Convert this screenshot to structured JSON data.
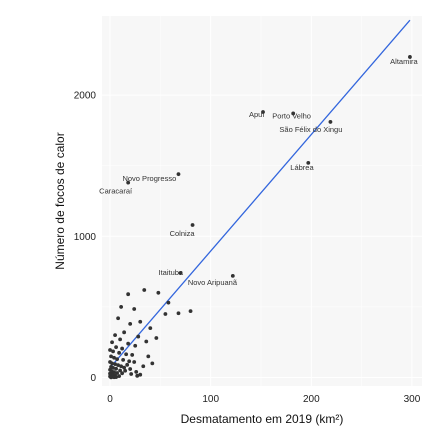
{
  "chart_data": {
    "type": "scatter",
    "title": "",
    "xlabel": "Desmatamento em 2019 (km²)",
    "ylabel": "Número de focos de calor",
    "xlim": [
      -8,
      310
    ],
    "ylim": [
      -60,
      2560
    ],
    "x_ticks": [
      0,
      100,
      200,
      300
    ],
    "y_ticks": [
      0,
      1000,
      2000
    ],
    "x_tick_labels": [
      "0",
      "100",
      "200",
      "300"
    ],
    "y_tick_labels": [
      "0",
      "1000",
      "2000"
    ],
    "grid": true,
    "background": "#f7f7f7",
    "grid_color": "#ffffff",
    "point_color": "#333333",
    "trend_color": "#3366dd",
    "trend_line": {
      "type": "linear",
      "x": [
        0,
        298
      ],
      "y": [
        70,
        2530
      ]
    },
    "labeled_points": [
      {
        "x": 298,
        "y": 2270,
        "label": "Altamira"
      },
      {
        "x": 152,
        "y": 1880,
        "label": "Apuí"
      },
      {
        "x": 182,
        "y": 1870,
        "label": "Porto Velho"
      },
      {
        "x": 219,
        "y": 1810,
        "label": "São Félix do Xingu"
      },
      {
        "x": 197,
        "y": 1520,
        "label": "Lábrea"
      },
      {
        "x": 68,
        "y": 1440,
        "label": "Novo Progresso"
      },
      {
        "x": 18,
        "y": 1380,
        "label": "Caracaraí"
      },
      {
        "x": 82,
        "y": 1080,
        "label": "Colniza"
      },
      {
        "x": 70,
        "y": 740,
        "label": "Itaituba"
      },
      {
        "x": 122,
        "y": 720,
        "label": "Novo Aripuanã"
      }
    ],
    "points": [
      {
        "x": 34,
        "y": 620
      },
      {
        "x": 48,
        "y": 600
      },
      {
        "x": 18,
        "y": 590
      },
      {
        "x": 58,
        "y": 530
      },
      {
        "x": 11,
        "y": 500
      },
      {
        "x": 24,
        "y": 485
      },
      {
        "x": 80,
        "y": 470
      },
      {
        "x": 68,
        "y": 455
      },
      {
        "x": 55,
        "y": 450
      },
      {
        "x": 8,
        "y": 420
      },
      {
        "x": 30,
        "y": 395
      },
      {
        "x": 20,
        "y": 380
      },
      {
        "x": 40,
        "y": 350
      },
      {
        "x": 14,
        "y": 320
      },
      {
        "x": 5,
        "y": 300
      },
      {
        "x": 28,
        "y": 290
      },
      {
        "x": 46,
        "y": 280
      },
      {
        "x": 10,
        "y": 270
      },
      {
        "x": 36,
        "y": 255
      },
      {
        "x": 2,
        "y": 250
      },
      {
        "x": 18,
        "y": 240
      },
      {
        "x": 25,
        "y": 225
      },
      {
        "x": 6,
        "y": 215
      },
      {
        "x": 12,
        "y": 205
      },
      {
        "x": 0,
        "y": 195
      },
      {
        "x": 3,
        "y": 185
      },
      {
        "x": 9,
        "y": 175
      },
      {
        "x": 16,
        "y": 165
      },
      {
        "x": 22,
        "y": 160
      },
      {
        "x": 1,
        "y": 150
      },
      {
        "x": 4,
        "y": 140
      },
      {
        "x": 7,
        "y": 130
      },
      {
        "x": 13,
        "y": 125
      },
      {
        "x": 19,
        "y": 115
      },
      {
        "x": 0,
        "y": 110
      },
      {
        "x": 2,
        "y": 100
      },
      {
        "x": 5,
        "y": 95
      },
      {
        "x": 8,
        "y": 88
      },
      {
        "x": 11,
        "y": 80
      },
      {
        "x": 1,
        "y": 75
      },
      {
        "x": 3,
        "y": 68
      },
      {
        "x": 6,
        "y": 62
      },
      {
        "x": 0,
        "y": 55
      },
      {
        "x": 10,
        "y": 50
      },
      {
        "x": 15,
        "y": 48
      },
      {
        "x": 2,
        "y": 42
      },
      {
        "x": 4,
        "y": 38
      },
      {
        "x": 7,
        "y": 32
      },
      {
        "x": 0,
        "y": 28
      },
      {
        "x": 1,
        "y": 22
      },
      {
        "x": 3,
        "y": 18
      },
      {
        "x": 5,
        "y": 14
      },
      {
        "x": 9,
        "y": 10
      },
      {
        "x": 0,
        "y": 8
      },
      {
        "x": 2,
        "y": 5
      },
      {
        "x": 12,
        "y": 30
      },
      {
        "x": 26,
        "y": 40
      },
      {
        "x": 30,
        "y": 20
      },
      {
        "x": 20,
        "y": 60
      },
      {
        "x": 17,
        "y": 90
      },
      {
        "x": 24,
        "y": 110
      },
      {
        "x": 14,
        "y": 70
      },
      {
        "x": 38,
        "y": 150
      },
      {
        "x": 42,
        "y": 100
      },
      {
        "x": 33,
        "y": 80
      },
      {
        "x": 27,
        "y": 12
      },
      {
        "x": 21,
        "y": 25
      },
      {
        "x": 6,
        "y": 3
      },
      {
        "x": 4,
        "y": 2
      },
      {
        "x": 1,
        "y": 1
      }
    ]
  }
}
